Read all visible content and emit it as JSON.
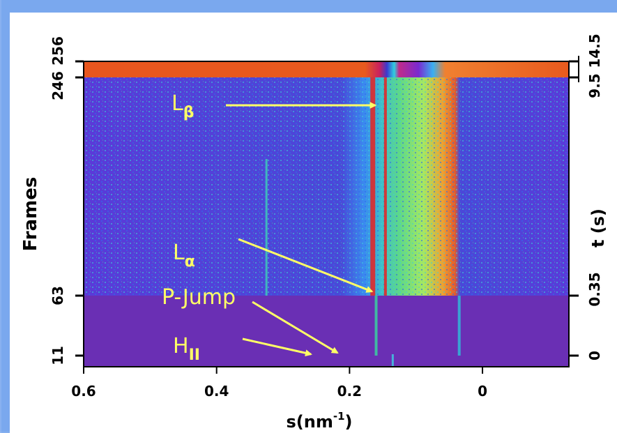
{
  "chart_data": {
    "type": "heatmap",
    "title": "",
    "xlabel": "s(nm",
    "xlabel_sup": "-1",
    "xlabel_close": ")",
    "ylabel_left": "Frames",
    "ylabel_right": "t (s)",
    "xlim": [
      0.6,
      -0.13
    ],
    "x_ticks": [
      {
        "value": 0.6,
        "label": "0.6"
      },
      {
        "value": 0.4,
        "label": "0.4"
      },
      {
        "value": 0.2,
        "label": "0.2"
      },
      {
        "value": 0.0,
        "label": "0"
      }
    ],
    "y_ticks_left": [
      {
        "frame": 11,
        "label": "11"
      },
      {
        "frame": 63,
        "label": "63"
      },
      {
        "frame": 246,
        "label": "246"
      },
      {
        "frame": 256,
        "label": "256"
      }
    ],
    "y_ticks_right": [
      {
        "frame": 11,
        "label": "0"
      },
      {
        "frame": 63,
        "label": "0.35"
      },
      {
        "frame": 246,
        "label": "9.5"
      },
      {
        "frame": 256,
        "label": "14.5"
      }
    ],
    "colormap": [
      "#6a2fb4",
      "#4a4ad8",
      "#3a8cf0",
      "#2fd0d8",
      "#5ee07a",
      "#c8f040",
      "#f0c030",
      "#f08030",
      "#e02a2a"
    ],
    "series": [
      {
        "name": "Lβ",
        "peak_s": 0.155,
        "frames": [
          63,
          246
        ]
      },
      {
        "name": "Lα",
        "peak_s": 0.16,
        "frames": [
          63,
          246
        ]
      },
      {
        "name": "HII",
        "peak_s": 0.225,
        "frames": [
          11,
          63
        ]
      }
    ],
    "annotations": [
      {
        "text": "L",
        "sub": "β",
        "target_s": 0.157,
        "target_frame": 220
      },
      {
        "text": "L",
        "sub": "α",
        "target_s": 0.16,
        "target_frame": 65
      },
      {
        "text": "P-Jump",
        "sub": "",
        "target_s": 0.23,
        "target_frame": 12
      },
      {
        "text": "H",
        "sub": "II",
        "target_s": 0.262,
        "target_frame": 11
      }
    ]
  }
}
